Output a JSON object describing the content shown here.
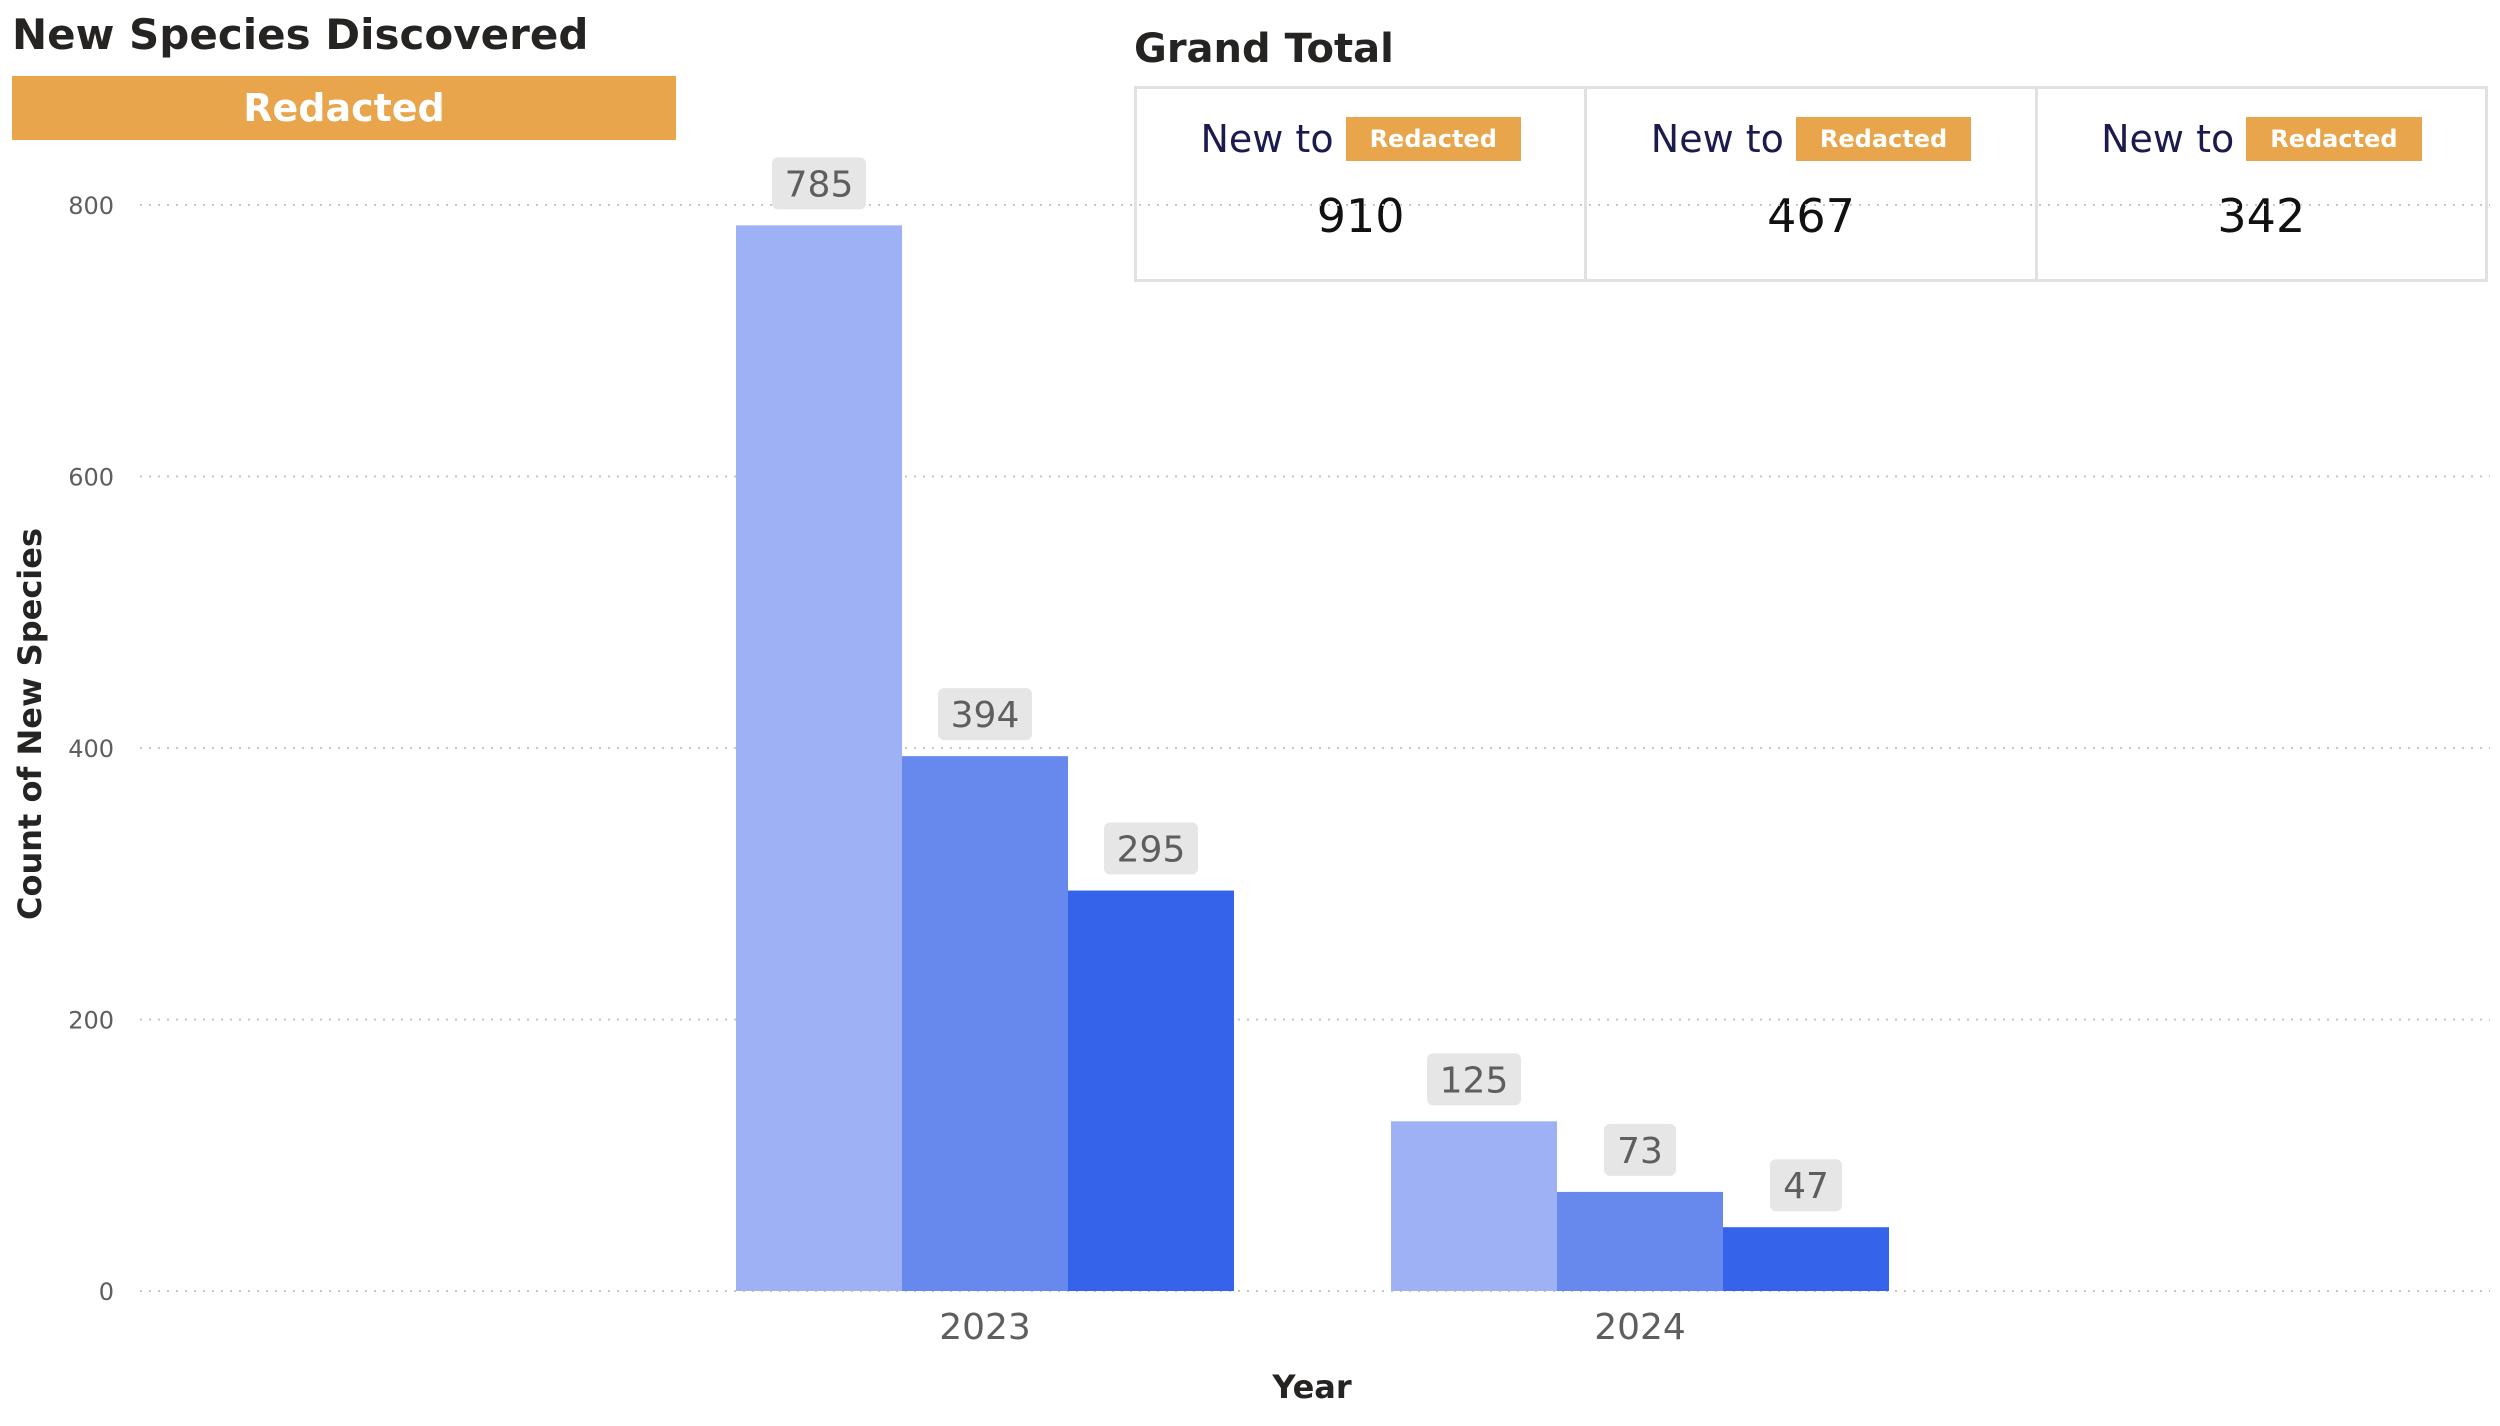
{
  "header": {
    "title": "New Species Discovered",
    "banner_label": "Redacted",
    "banner_color": "#e8a54b"
  },
  "grand_total": {
    "title": "Grand Total",
    "cards": [
      {
        "prefix": "New to",
        "badge": "Redacted",
        "value": "910"
      },
      {
        "prefix": "New to",
        "badge": "Redacted",
        "value": "467"
      },
      {
        "prefix": "New to",
        "badge": "Redacted",
        "value": "342"
      }
    ]
  },
  "chart_data": {
    "type": "bar",
    "categories": [
      "2023",
      "2024"
    ],
    "series": [
      {
        "values": [
          785,
          125
        ],
        "color": "#9db1f4"
      },
      {
        "values": [
          394,
          73
        ],
        "color": "#6789ee"
      },
      {
        "values": [
          295,
          47
        ],
        "color": "#3563e9"
      }
    ],
    "xlabel": "Year",
    "ylabel": "Count of New Species",
    "ylim": [
      0,
      800
    ],
    "yticks": [
      0,
      200,
      400,
      600,
      800
    ],
    "grid": true,
    "data_labels": true
  }
}
